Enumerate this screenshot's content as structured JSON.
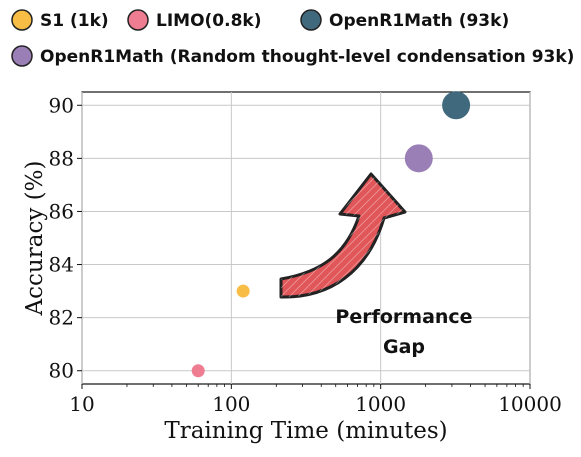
{
  "chart_data": {
    "type": "scatter",
    "xlabel": "Training Time (minutes)",
    "ylabel": "Accuracy (%)",
    "x_scale": "log",
    "xlim": [
      10,
      10000
    ],
    "ylim": [
      79.5,
      90.5
    ],
    "x_ticks": [
      "10",
      "100",
      "1000",
      "10000"
    ],
    "y_ticks": [
      80,
      82,
      84,
      86,
      88,
      90
    ],
    "grid": true,
    "legend_position": "top",
    "series": [
      {
        "name": "S1 (1k)",
        "color": "#f7bd45",
        "size": "small",
        "points": [
          {
            "x": 120,
            "y": 83
          }
        ]
      },
      {
        "name": "LIMO(0.8k)",
        "color": "#ee7d92",
        "size": "small",
        "points": [
          {
            "x": 60,
            "y": 80
          }
        ]
      },
      {
        "name": "OpenR1Math (93k)",
        "color": "#41697e",
        "size": "large",
        "points": [
          {
            "x": 3200,
            "y": 90
          }
        ]
      },
      {
        "name": "OpenR1Math (Random thought-level condensation 93k)",
        "color": "#9a7fb6",
        "size": "large",
        "points": [
          {
            "x": 1800,
            "y": 88
          }
        ]
      }
    ],
    "annotations": [
      {
        "lines": [
          "Performance",
          "Gap"
        ],
        "arrow_color": "#e15759",
        "arrow_icon": "curved-arrow-icon"
      }
    ]
  }
}
